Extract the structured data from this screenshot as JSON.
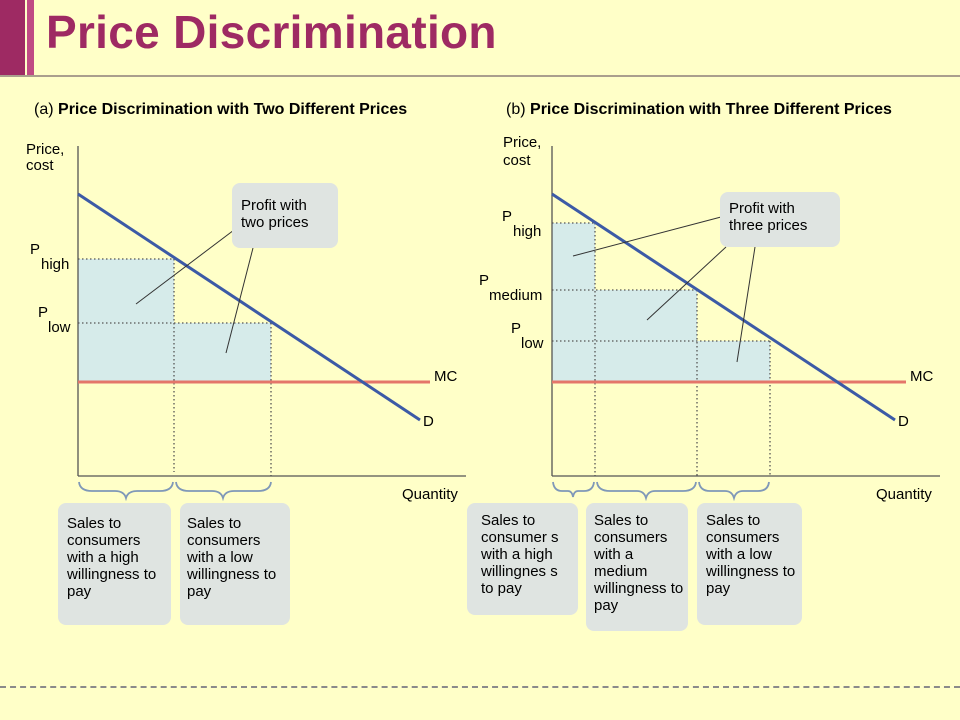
{
  "title": "Price Discrimination",
  "panel_a": {
    "title_prefix": "(a)",
    "title": "Price Discrimination with Two Different Prices",
    "y_label_line1": "Price,",
    "y_label_line2": "cost",
    "x_label": "Quantity",
    "p_high": {
      "main": "P",
      "sub": "high"
    },
    "p_low": {
      "main": "P",
      "sub": "low"
    },
    "mc_label": "MC",
    "d_label": "D",
    "profit_label": "Profit with two prices",
    "groups": [
      "Sales to consumers with a high willingness to pay",
      "Sales to consumers with a low willingness to pay"
    ]
  },
  "panel_b": {
    "title_prefix": "(b)",
    "title": "Price Discrimination with Three Different Prices",
    "y_label_line1": "Price,",
    "y_label_line2": "cost",
    "x_label": "Quantity",
    "p_high": {
      "main": "P",
      "sub": "high"
    },
    "p_medium": {
      "main": "P",
      "sub": "medium"
    },
    "p_low": {
      "main": "P",
      "sub": "low"
    },
    "mc_label": "MC",
    "d_label": "D",
    "profit_label": "Profit with three prices",
    "groups": [
      "Sales to consumer s with a high willingnes s to pay",
      "Sales to consumers with a medium willingness to pay",
      "Sales to consumers with a low willingness to pay"
    ]
  },
  "colors": {
    "background": "#ffffc8",
    "title": "#9e2a63",
    "demand_line": "#3c5aa6",
    "mc_line": "#e4766a",
    "profit_fill": "#d6ebea",
    "callout_fill": "#dfe4e1"
  }
}
